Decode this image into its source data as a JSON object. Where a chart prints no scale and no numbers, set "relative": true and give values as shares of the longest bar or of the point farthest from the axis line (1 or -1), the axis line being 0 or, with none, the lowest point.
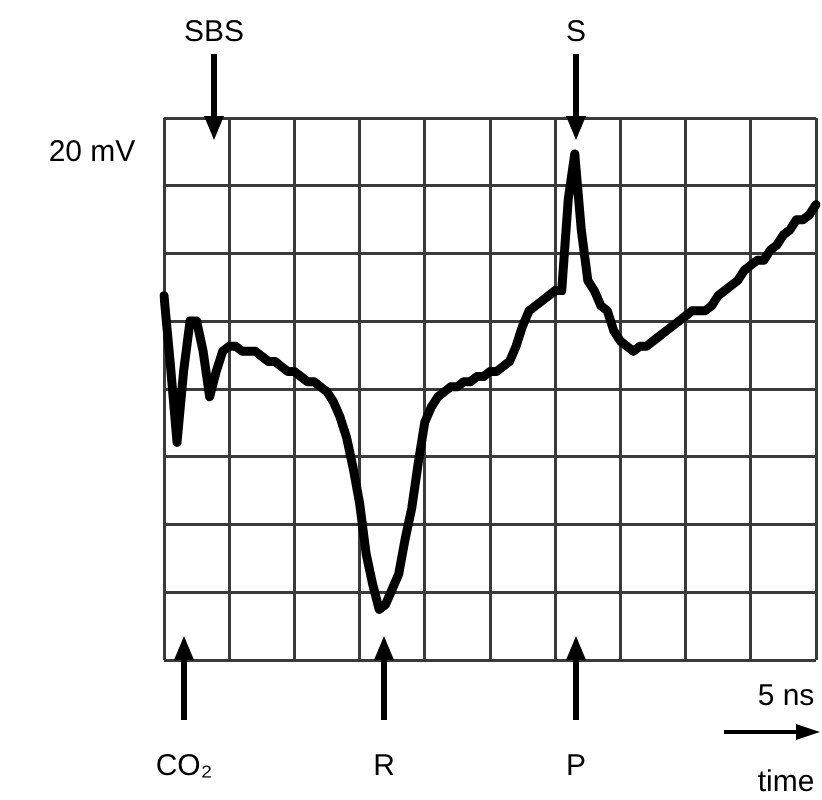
{
  "chart_data": {
    "type": "line",
    "relative": true,
    "color": "#000000",
    "grid": true,
    "legend": false,
    "marker": "none",
    "line_style": "solid",
    "categories": [
      null,
      null,
      null,
      null,
      null,
      null,
      null,
      null,
      null,
      null,
      null,
      null,
      null,
      null,
      null,
      null,
      null,
      null,
      null,
      null,
      null,
      null,
      null,
      null,
      null,
      null,
      null,
      null,
      null,
      null,
      null,
      null,
      null,
      null,
      null,
      null,
      null,
      null,
      null,
      null,
      null,
      null,
      null,
      null,
      null,
      null,
      null,
      null,
      null,
      null,
      null,
      null,
      null,
      null,
      null,
      null,
      null,
      null,
      null,
      null,
      null,
      null,
      null,
      null,
      null,
      null,
      null,
      null,
      null,
      null,
      null,
      null,
      null,
      null,
      null,
      null,
      null,
      null,
      null,
      null,
      null,
      null,
      null,
      null,
      null,
      null,
      null,
      null,
      null,
      null,
      null,
      null,
      null,
      null,
      null,
      null,
      null,
      null,
      null,
      null,
      null
    ],
    "values": [
      0.72,
      0.58,
      0.43,
      0.57,
      0.67,
      0.67,
      0.61,
      0.52,
      0.57,
      0.61,
      0.62,
      0.62,
      0.61,
      0.61,
      0.61,
      0.6,
      0.59,
      0.59,
      0.58,
      0.57,
      0.57,
      0.56,
      0.55,
      0.55,
      0.54,
      0.53,
      0.51,
      0.48,
      0.44,
      0.38,
      0.31,
      0.21,
      0.15,
      0.1,
      0.11,
      0.14,
      0.17,
      0.24,
      0.3,
      0.39,
      0.47,
      0.5,
      0.52,
      0.53,
      0.54,
      0.54,
      0.55,
      0.55,
      0.56,
      0.56,
      0.57,
      0.57,
      0.58,
      0.59,
      0.62,
      0.66,
      0.69,
      0.7,
      0.71,
      0.72,
      0.73,
      0.73,
      0.91,
      1,
      0.85,
      0.75,
      0.73,
      0.7,
      0.69,
      0.65,
      0.63,
      0.62,
      0.61,
      0.62,
      0.62,
      0.63,
      0.64,
      0.65,
      0.66,
      0.67,
      0.68,
      0.69,
      0.69,
      0.69,
      0.7,
      0.72,
      0.73,
      0.74,
      0.75,
      0.77,
      0.78,
      0.79,
      0.79,
      0.81,
      0.82,
      0.84,
      0.85,
      0.87,
      0.87,
      0.88,
      0.9
    ],
    "annotations": [
      "SBS",
      "S",
      "20 mV",
      "CO₂",
      "R",
      "P",
      "5 ns",
      "time"
    ]
  }
}
